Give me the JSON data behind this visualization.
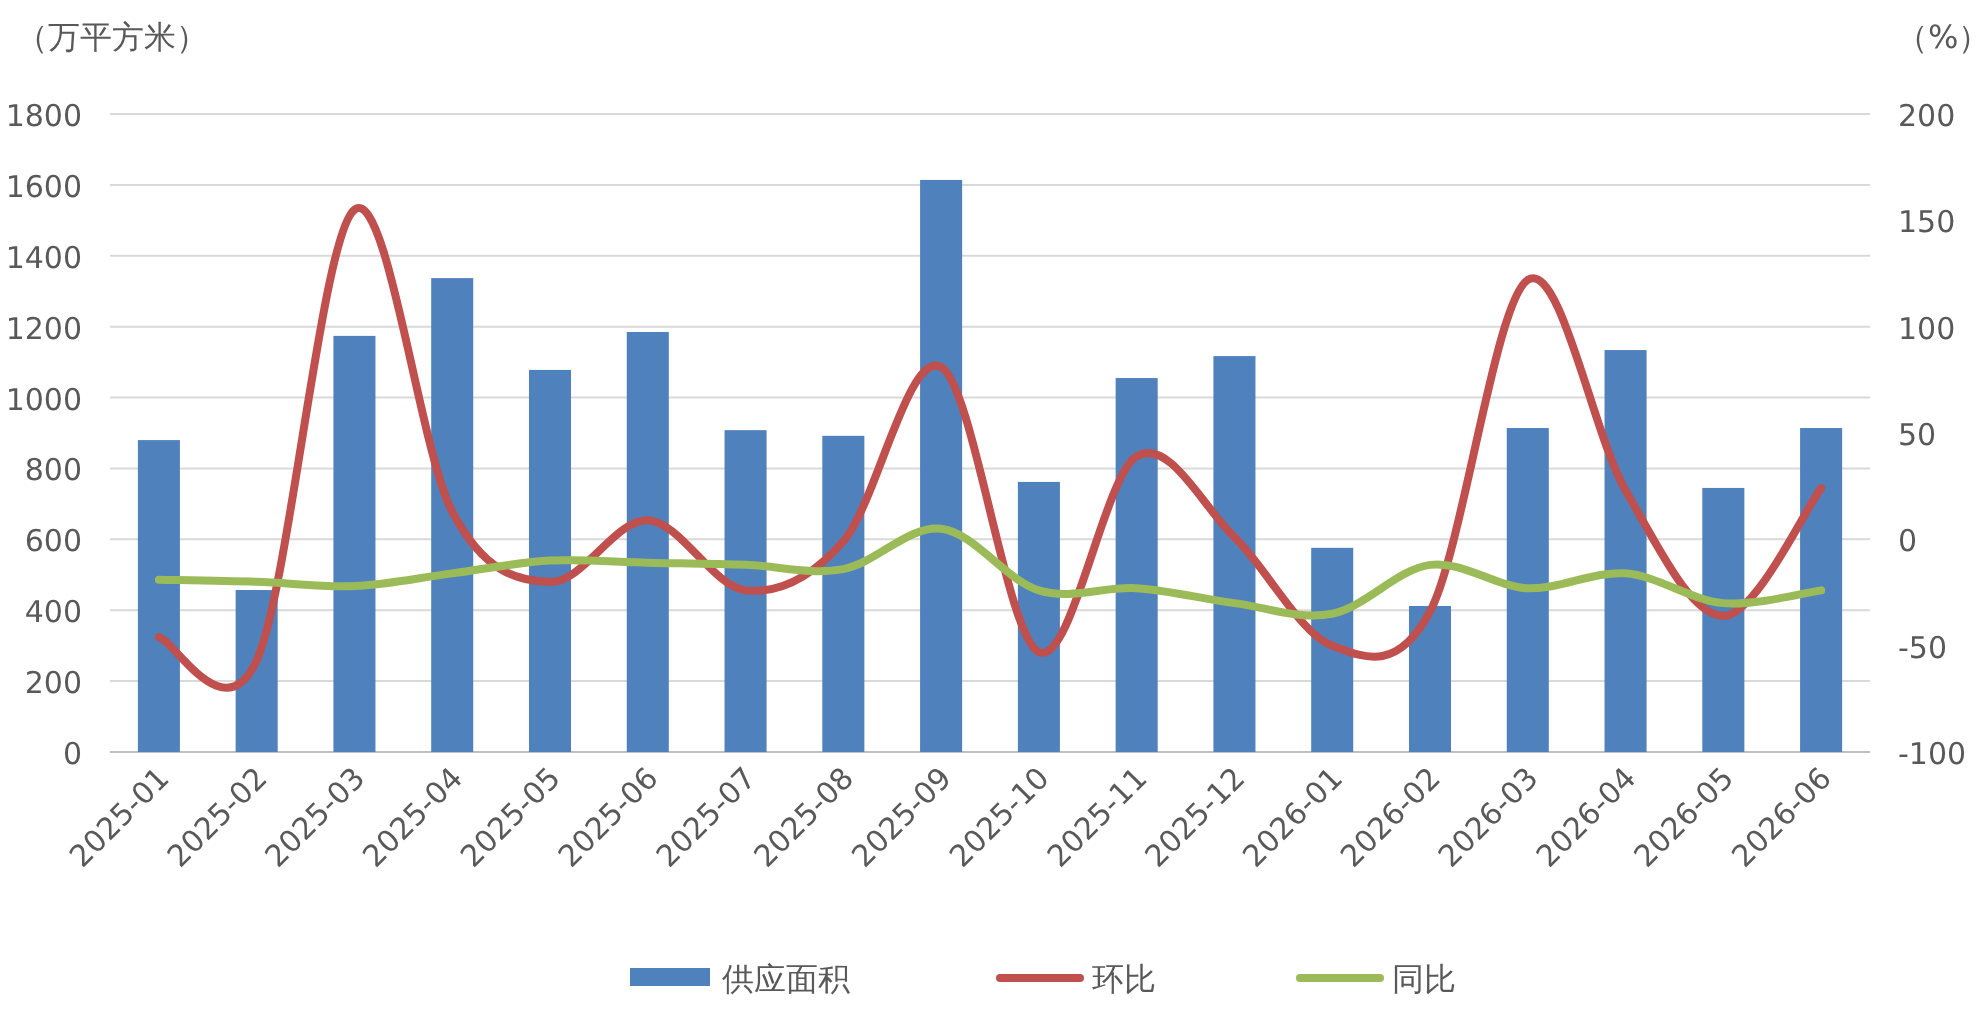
{
  "chart_data": {
    "type": "bar",
    "ylabel": "（万平方米）",
    "y2label": "（%）",
    "categories": [
      "2025-01",
      "2025-02",
      "2025-03",
      "2025-04",
      "2025-05",
      "2025-06",
      "2025-07",
      "2025-08",
      "2025-09",
      "2025-10",
      "2025-11",
      "2025-12",
      "2026-01",
      "2026-02",
      "2026-03",
      "2026-04",
      "2026-05",
      "2026-06"
    ],
    "series": [
      {
        "name": "供应面积",
        "color": "#4f81bd",
        "values": [
          880,
          457,
          1174,
          1337,
          1078,
          1185,
          908,
          892,
          1614,
          762,
          1055,
          1117,
          576,
          412,
          914,
          1134,
          745,
          914
        ]
      },
      {
        "name": "环比",
        "type": "line",
        "axis": "y2",
        "color": "#c0504d",
        "values": [
          -46,
          -57,
          155,
          13,
          -20,
          9,
          -24,
          -1,
          81,
          -53,
          39,
          1,
          -50,
          -34,
          122,
          23,
          -36,
          24
        ]
      },
      {
        "name": "同比",
        "type": "line",
        "axis": "y2",
        "color": "#9bbb59",
        "values": [
          -19,
          -20,
          -22,
          -16,
          -10,
          -11,
          -12,
          -14,
          5,
          -24,
          -23,
          -30,
          -35,
          -12,
          -23,
          -16,
          -30,
          -24
        ]
      }
    ],
    "ylim": [
      0,
      1800
    ],
    "yticks": [
      0,
      200,
      400,
      600,
      800,
      1000,
      1200,
      1400,
      1600,
      1800
    ],
    "y2lim": [
      -100,
      200
    ],
    "y2ticks": [
      -100,
      -50,
      0,
      50,
      100,
      150,
      200
    ],
    "grid": "y",
    "legend": "bottom",
    "marker": "none",
    "line_style": "solid"
  }
}
